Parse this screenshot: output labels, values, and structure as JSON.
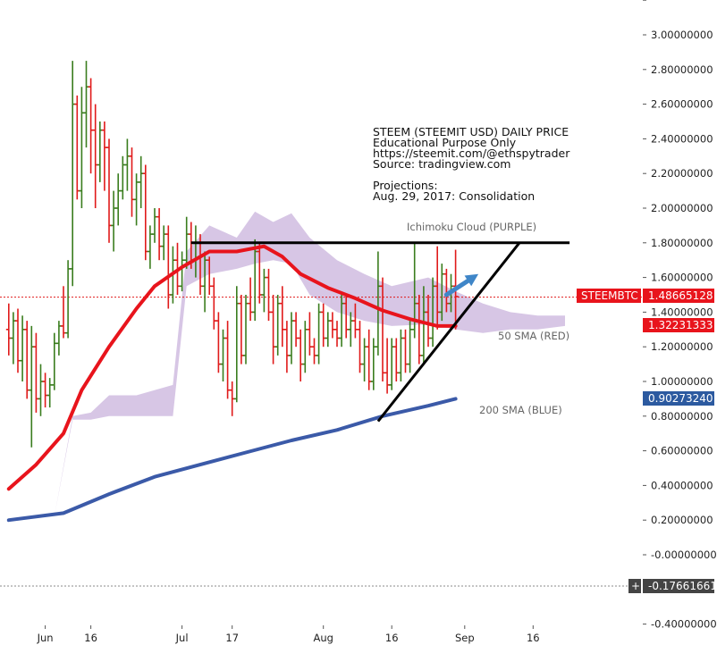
{
  "chart_data": {
    "type": "candlestick",
    "colors": {
      "up": "#3a7d1e",
      "down": "#e01a1a",
      "sma50": "#e8141c",
      "sma200": "#3b5aa8",
      "cloud": "#c9b3dc",
      "trendline": "#000000",
      "arrow": "#3f86c8",
      "price_line": "#e01a1a",
      "badge_red": "#e8141c",
      "badge_blue": "#2c5aa0",
      "badge_dark": "#444444"
    },
    "y_axis": {
      "side": "right",
      "range": [
        -0.4,
        3.2
      ],
      "ticks": [
        "3.00000000",
        "2.80000000",
        "2.60000000",
        "2.40000000",
        "2.20000000",
        "2.00000000",
        "1.80000000",
        "1.60000000",
        "1.40000000",
        "1.20000000",
        "1.00000000",
        "0.80000000",
        "0.60000000",
        "0.40000000",
        "0.20000000",
        "-0.00000000",
        "-0.40000000"
      ],
      "tick_values": [
        3.0,
        2.8,
        2.6,
        2.4,
        2.2,
        2.0,
        1.8,
        1.6,
        1.4,
        1.2,
        1.0,
        0.8,
        0.6,
        0.4,
        0.2,
        0.0,
        -0.4
      ]
    },
    "x_axis": {
      "ticks": [
        {
          "label": "Jun",
          "day": 6
        },
        {
          "label": "16",
          "day": 16
        },
        {
          "label": "Jul",
          "day": 36
        },
        {
          "label": "17",
          "day": 47
        },
        {
          "label": "Aug",
          "day": 67
        },
        {
          "label": "16",
          "day": 82
        },
        {
          "label": "Sep",
          "day": 98
        },
        {
          "label": "16",
          "day": 113
        }
      ]
    },
    "candles": [
      {
        "d": -2,
        "o": 1.3,
        "h": 1.45,
        "l": 1.15,
        "c": 1.25
      },
      {
        "d": -1,
        "o": 1.25,
        "h": 1.4,
        "l": 1.1,
        "c": 1.35
      },
      {
        "d": 0,
        "o": 1.35,
        "h": 1.42,
        "l": 1.05,
        "c": 1.12
      },
      {
        "d": 1,
        "o": 1.12,
        "h": 1.38,
        "l": 1.0,
        "c": 1.3
      },
      {
        "d": 2,
        "o": 1.3,
        "h": 1.35,
        "l": 0.9,
        "c": 0.95
      },
      {
        "d": 3,
        "o": 0.95,
        "h": 1.32,
        "l": 0.62,
        "c": 1.2
      },
      {
        "d": 4,
        "o": 1.2,
        "h": 1.28,
        "l": 0.82,
        "c": 0.9
      },
      {
        "d": 5,
        "o": 0.9,
        "h": 1.1,
        "l": 0.8,
        "c": 1.0
      },
      {
        "d": 6,
        "o": 1.0,
        "h": 1.05,
        "l": 0.85,
        "c": 0.92
      },
      {
        "d": 7,
        "o": 0.92,
        "h": 1.02,
        "l": 0.85,
        "c": 0.98
      },
      {
        "d": 8,
        "o": 0.98,
        "h": 1.28,
        "l": 0.95,
        "c": 1.22
      },
      {
        "d": 9,
        "o": 1.22,
        "h": 1.35,
        "l": 1.15,
        "c": 1.32
      },
      {
        "d": 10,
        "o": 1.32,
        "h": 1.55,
        "l": 1.25,
        "c": 1.28
      },
      {
        "d": 11,
        "o": 1.28,
        "h": 1.7,
        "l": 1.25,
        "c": 1.65
      },
      {
        "d": 12,
        "o": 1.65,
        "h": 2.85,
        "l": 1.55,
        "c": 2.6
      },
      {
        "d": 13,
        "o": 2.6,
        "h": 2.65,
        "l": 2.05,
        "c": 2.1
      },
      {
        "d": 14,
        "o": 2.1,
        "h": 2.7,
        "l": 2.0,
        "c": 2.55
      },
      {
        "d": 15,
        "o": 2.55,
        "h": 2.85,
        "l": 2.35,
        "c": 2.7
      },
      {
        "d": 16,
        "o": 2.7,
        "h": 2.75,
        "l": 2.2,
        "c": 2.45
      },
      {
        "d": 17,
        "o": 2.45,
        "h": 2.6,
        "l": 2.0,
        "c": 2.25
      },
      {
        "d": 18,
        "o": 2.25,
        "h": 2.5,
        "l": 2.15,
        "c": 2.45
      },
      {
        "d": 19,
        "o": 2.45,
        "h": 2.5,
        "l": 2.1,
        "c": 2.35
      },
      {
        "d": 20,
        "o": 2.35,
        "h": 2.4,
        "l": 1.8,
        "c": 1.9
      },
      {
        "d": 21,
        "o": 1.9,
        "h": 2.1,
        "l": 1.75,
        "c": 2.0
      },
      {
        "d": 22,
        "o": 2.0,
        "h": 2.2,
        "l": 1.9,
        "c": 2.1
      },
      {
        "d": 23,
        "o": 2.1,
        "h": 2.3,
        "l": 2.05,
        "c": 2.25
      },
      {
        "d": 24,
        "o": 2.25,
        "h": 2.4,
        "l": 2.1,
        "c": 2.3
      },
      {
        "d": 25,
        "o": 2.3,
        "h": 2.35,
        "l": 1.95,
        "c": 2.05
      },
      {
        "d": 26,
        "o": 2.05,
        "h": 2.2,
        "l": 1.9,
        "c": 2.15
      },
      {
        "d": 27,
        "o": 2.15,
        "h": 2.3,
        "l": 2.0,
        "c": 2.2
      },
      {
        "d": 28,
        "o": 2.2,
        "h": 2.25,
        "l": 1.7,
        "c": 1.75
      },
      {
        "d": 29,
        "o": 1.75,
        "h": 1.9,
        "l": 1.65,
        "c": 1.85
      },
      {
        "d": 30,
        "o": 1.85,
        "h": 2.0,
        "l": 1.8,
        "c": 1.95
      },
      {
        "d": 31,
        "o": 1.95,
        "h": 2.0,
        "l": 1.7,
        "c": 1.78
      },
      {
        "d": 32,
        "o": 1.78,
        "h": 1.9,
        "l": 1.7,
        "c": 1.85
      },
      {
        "d": 33,
        "o": 1.85,
        "h": 1.9,
        "l": 1.42,
        "c": 1.5
      },
      {
        "d": 34,
        "o": 1.5,
        "h": 1.78,
        "l": 1.45,
        "c": 1.7
      },
      {
        "d": 35,
        "o": 1.7,
        "h": 1.8,
        "l": 1.5,
        "c": 1.55
      },
      {
        "d": 36,
        "o": 1.55,
        "h": 1.75,
        "l": 1.52,
        "c": 1.7
      },
      {
        "d": 37,
        "o": 1.7,
        "h": 1.95,
        "l": 1.65,
        "c": 1.85
      },
      {
        "d": 38,
        "o": 1.85,
        "h": 1.92,
        "l": 1.65,
        "c": 1.7
      },
      {
        "d": 39,
        "o": 1.7,
        "h": 1.9,
        "l": 1.6,
        "c": 1.8
      },
      {
        "d": 40,
        "o": 1.8,
        "h": 1.85,
        "l": 1.5,
        "c": 1.55
      },
      {
        "d": 41,
        "o": 1.55,
        "h": 1.75,
        "l": 1.4,
        "c": 1.7
      },
      {
        "d": 42,
        "o": 1.7,
        "h": 1.72,
        "l": 1.5,
        "c": 1.55
      },
      {
        "d": 43,
        "o": 1.55,
        "h": 1.6,
        "l": 1.3,
        "c": 1.35
      },
      {
        "d": 44,
        "o": 1.35,
        "h": 1.4,
        "l": 1.05,
        "c": 1.1
      },
      {
        "d": 45,
        "o": 1.1,
        "h": 1.3,
        "l": 1.0,
        "c": 1.25
      },
      {
        "d": 46,
        "o": 1.25,
        "h": 1.35,
        "l": 0.9,
        "c": 0.95
      },
      {
        "d": 47,
        "o": 0.95,
        "h": 1.0,
        "l": 0.8,
        "c": 0.9
      },
      {
        "d": 48,
        "o": 0.9,
        "h": 1.55,
        "l": 0.88,
        "c": 1.45
      },
      {
        "d": 49,
        "o": 1.45,
        "h": 1.5,
        "l": 1.1,
        "c": 1.15
      },
      {
        "d": 50,
        "o": 1.15,
        "h": 1.5,
        "l": 1.1,
        "c": 1.45
      },
      {
        "d": 51,
        "o": 1.45,
        "h": 1.6,
        "l": 1.35,
        "c": 1.4
      },
      {
        "d": 52,
        "o": 1.4,
        "h": 1.82,
        "l": 1.35,
        "c": 1.75
      },
      {
        "d": 53,
        "o": 1.75,
        "h": 1.8,
        "l": 1.45,
        "c": 1.5
      },
      {
        "d": 54,
        "o": 1.5,
        "h": 1.65,
        "l": 1.4,
        "c": 1.6
      },
      {
        "d": 55,
        "o": 1.6,
        "h": 1.65,
        "l": 1.35,
        "c": 1.4
      },
      {
        "d": 56,
        "o": 1.4,
        "h": 1.5,
        "l": 1.1,
        "c": 1.2
      },
      {
        "d": 57,
        "o": 1.2,
        "h": 1.5,
        "l": 1.15,
        "c": 1.45
      },
      {
        "d": 58,
        "o": 1.45,
        "h": 1.55,
        "l": 1.2,
        "c": 1.3
      },
      {
        "d": 59,
        "o": 1.3,
        "h": 1.35,
        "l": 1.05,
        "c": 1.15
      },
      {
        "d": 60,
        "o": 1.15,
        "h": 1.4,
        "l": 1.1,
        "c": 1.35
      },
      {
        "d": 61,
        "o": 1.35,
        "h": 1.4,
        "l": 1.2,
        "c": 1.25
      },
      {
        "d": 62,
        "o": 1.25,
        "h": 1.3,
        "l": 1.0,
        "c": 1.1
      },
      {
        "d": 63,
        "o": 1.1,
        "h": 1.35,
        "l": 1.05,
        "c": 1.3
      },
      {
        "d": 64,
        "o": 1.3,
        "h": 1.4,
        "l": 1.15,
        "c": 1.2
      },
      {
        "d": 65,
        "o": 1.2,
        "h": 1.25,
        "l": 1.1,
        "c": 1.15
      },
      {
        "d": 66,
        "o": 1.15,
        "h": 1.45,
        "l": 1.1,
        "c": 1.4
      },
      {
        "d": 67,
        "o": 1.4,
        "h": 1.45,
        "l": 1.2,
        "c": 1.25
      },
      {
        "d": 68,
        "o": 1.25,
        "h": 1.4,
        "l": 1.2,
        "c": 1.35
      },
      {
        "d": 69,
        "o": 1.35,
        "h": 1.4,
        "l": 1.25,
        "c": 1.3
      },
      {
        "d": 70,
        "o": 1.3,
        "h": 1.35,
        "l": 1.2,
        "c": 1.25
      },
      {
        "d": 71,
        "o": 1.25,
        "h": 1.5,
        "l": 1.2,
        "c": 1.45
      },
      {
        "d": 72,
        "o": 1.45,
        "h": 1.5,
        "l": 1.25,
        "c": 1.3
      },
      {
        "d": 73,
        "o": 1.3,
        "h": 1.4,
        "l": 1.2,
        "c": 1.35
      },
      {
        "d": 74,
        "o": 1.35,
        "h": 1.45,
        "l": 1.25,
        "c": 1.3
      },
      {
        "d": 75,
        "o": 1.3,
        "h": 1.35,
        "l": 1.05,
        "c": 1.1
      },
      {
        "d": 76,
        "o": 1.1,
        "h": 1.25,
        "l": 1.0,
        "c": 1.2
      },
      {
        "d": 77,
        "o": 1.2,
        "h": 1.3,
        "l": 0.95,
        "c": 1.0
      },
      {
        "d": 78,
        "o": 1.0,
        "h": 1.25,
        "l": 0.95,
        "c": 1.2
      },
      {
        "d": 79,
        "o": 1.2,
        "h": 1.75,
        "l": 1.15,
        "c": 1.55
      },
      {
        "d": 80,
        "o": 1.55,
        "h": 1.6,
        "l": 1.0,
        "c": 1.05
      },
      {
        "d": 81,
        "o": 1.05,
        "h": 1.25,
        "l": 0.93,
        "c": 0.98
      },
      {
        "d": 82,
        "o": 0.98,
        "h": 1.25,
        "l": 0.95,
        "c": 1.2
      },
      {
        "d": 83,
        "o": 1.2,
        "h": 1.25,
        "l": 1.0,
        "c": 1.05
      },
      {
        "d": 84,
        "o": 1.05,
        "h": 1.3,
        "l": 1.0,
        "c": 1.25
      },
      {
        "d": 85,
        "o": 1.25,
        "h": 1.3,
        "l": 1.05,
        "c": 1.1
      },
      {
        "d": 86,
        "o": 1.1,
        "h": 1.35,
        "l": 1.05,
        "c": 1.3
      },
      {
        "d": 87,
        "o": 1.3,
        "h": 1.8,
        "l": 1.25,
        "c": 1.45
      },
      {
        "d": 88,
        "o": 1.45,
        "h": 1.5,
        "l": 1.1,
        "c": 1.15
      },
      {
        "d": 89,
        "o": 1.15,
        "h": 1.55,
        "l": 1.1,
        "c": 1.4
      },
      {
        "d": 90,
        "o": 1.4,
        "h": 1.5,
        "l": 1.2,
        "c": 1.25
      },
      {
        "d": 91,
        "o": 1.25,
        "h": 1.6,
        "l": 1.2,
        "c": 1.55
      },
      {
        "d": 92,
        "o": 1.55,
        "h": 1.78,
        "l": 1.3,
        "c": 1.4
      },
      {
        "d": 93,
        "o": 1.4,
        "h": 1.68,
        "l": 1.35,
        "c": 1.62
      },
      {
        "d": 94,
        "o": 1.62,
        "h": 1.65,
        "l": 1.4,
        "c": 1.45
      },
      {
        "d": 95,
        "o": 1.45,
        "h": 1.62,
        "l": 1.4,
        "c": 1.55
      },
      {
        "d": 96,
        "o": 1.55,
        "h": 1.76,
        "l": 1.3,
        "c": 1.49
      }
    ],
    "sma50": [
      {
        "d": -2,
        "v": 0.38
      },
      {
        "d": 4,
        "v": 0.52
      },
      {
        "d": 10,
        "v": 0.7
      },
      {
        "d": 14,
        "v": 0.95
      },
      {
        "d": 20,
        "v": 1.2
      },
      {
        "d": 26,
        "v": 1.42
      },
      {
        "d": 30,
        "v": 1.55
      },
      {
        "d": 36,
        "v": 1.66
      },
      {
        "d": 42,
        "v": 1.75
      },
      {
        "d": 48,
        "v": 1.75
      },
      {
        "d": 54,
        "v": 1.78
      },
      {
        "d": 58,
        "v": 1.72
      },
      {
        "d": 62,
        "v": 1.62
      },
      {
        "d": 68,
        "v": 1.54
      },
      {
        "d": 74,
        "v": 1.48
      },
      {
        "d": 80,
        "v": 1.41
      },
      {
        "d": 86,
        "v": 1.36
      },
      {
        "d": 92,
        "v": 1.32
      },
      {
        "d": 96,
        "v": 1.32
      }
    ],
    "sma200": [
      {
        "d": -2,
        "v": 0.2
      },
      {
        "d": 10,
        "v": 0.24
      },
      {
        "d": 20,
        "v": 0.35
      },
      {
        "d": 30,
        "v": 0.45
      },
      {
        "d": 40,
        "v": 0.52
      },
      {
        "d": 50,
        "v": 0.59
      },
      {
        "d": 60,
        "v": 0.66
      },
      {
        "d": 70,
        "v": 0.72
      },
      {
        "d": 80,
        "v": 0.8
      },
      {
        "d": 90,
        "v": 0.86
      },
      {
        "d": 96,
        "v": 0.9
      }
    ],
    "cloud": {
      "top": [
        {
          "d": -2,
          "v": 0.2
        },
        {
          "d": 8,
          "v": 0.22
        },
        {
          "d": 12,
          "v": 0.8
        },
        {
          "d": 16,
          "v": 0.82
        },
        {
          "d": 20,
          "v": 0.92
        },
        {
          "d": 26,
          "v": 0.92
        },
        {
          "d": 34,
          "v": 0.98
        },
        {
          "d": 37,
          "v": 1.75
        },
        {
          "d": 42,
          "v": 1.9
        },
        {
          "d": 48,
          "v": 1.83
        },
        {
          "d": 52,
          "v": 1.98
        },
        {
          "d": 56,
          "v": 1.92
        },
        {
          "d": 60,
          "v": 1.97
        },
        {
          "d": 64,
          "v": 1.83
        },
        {
          "d": 70,
          "v": 1.7
        },
        {
          "d": 76,
          "v": 1.62
        },
        {
          "d": 82,
          "v": 1.55
        },
        {
          "d": 90,
          "v": 1.6
        },
        {
          "d": 96,
          "v": 1.52
        },
        {
          "d": 102,
          "v": 1.45
        },
        {
          "d": 108,
          "v": 1.4
        },
        {
          "d": 114,
          "v": 1.38
        },
        {
          "d": 120,
          "v": 1.38
        }
      ],
      "bottom": [
        {
          "d": -2,
          "v": 0.2
        },
        {
          "d": 8,
          "v": 0.22
        },
        {
          "d": 12,
          "v": 0.78
        },
        {
          "d": 16,
          "v": 0.78
        },
        {
          "d": 20,
          "v": 0.8
        },
        {
          "d": 26,
          "v": 0.8
        },
        {
          "d": 34,
          "v": 0.8
        },
        {
          "d": 37,
          "v": 1.55
        },
        {
          "d": 42,
          "v": 1.62
        },
        {
          "d": 48,
          "v": 1.65
        },
        {
          "d": 52,
          "v": 1.68
        },
        {
          "d": 56,
          "v": 1.7
        },
        {
          "d": 60,
          "v": 1.68
        },
        {
          "d": 64,
          "v": 1.5
        },
        {
          "d": 70,
          "v": 1.4
        },
        {
          "d": 76,
          "v": 1.35
        },
        {
          "d": 82,
          "v": 1.32
        },
        {
          "d": 90,
          "v": 1.33
        },
        {
          "d": 96,
          "v": 1.3
        },
        {
          "d": 102,
          "v": 1.28
        },
        {
          "d": 108,
          "v": 1.3
        },
        {
          "d": 114,
          "v": 1.3
        },
        {
          "d": 120,
          "v": 1.32
        }
      ]
    },
    "lines": {
      "resistance": {
        "d1": 38,
        "v1": 1.8,
        "d2": 121,
        "v2": 1.8
      },
      "support": {
        "d1": 79,
        "v1": 0.77,
        "d2": 110,
        "v2": 1.8
      },
      "arrow": {
        "d1": 94,
        "v1": 1.5,
        "d2": 101,
        "v2": 1.62
      },
      "price": {
        "v": 1.48665128
      }
    },
    "annotations": {
      "info_lines": [
        "STEEM (STEEMIT USD) DAILY PRICE",
        "Educational Purpose Only",
        "https://steemit.com/@ethspytrader",
        "Source: tradingview.com",
        "",
        "Projections:",
        "Aug. 29, 2017: Consolidation"
      ],
      "cloud_label": "Ichimoku Cloud (PURPLE)",
      "sma50_label": "50 SMA (RED)",
      "sma200_label": "200 SMA (BLUE)"
    },
    "badges": {
      "symbol": "STEEMBTC",
      "price": "1.48665128",
      "sma50": "1.32231333",
      "sma200": "0.90273240",
      "cursor": "-0.17661661",
      "plus": "+"
    }
  }
}
